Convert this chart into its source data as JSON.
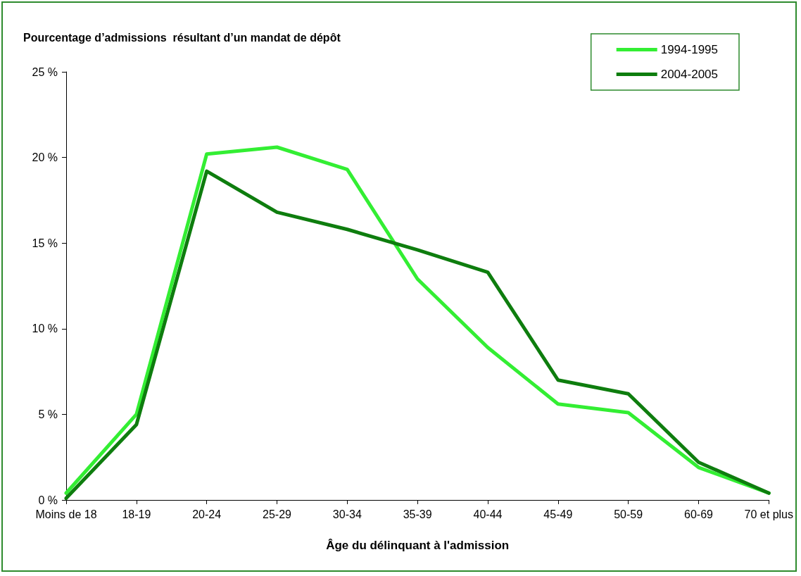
{
  "chart_data": {
    "type": "line",
    "title": "Pourcentage d’admissions  résultant d’un mandat de dépôt",
    "xlabel": "Âge du délinquant à l'admission",
    "categories": [
      "Moins de 18",
      "18-19",
      "20-24",
      "25-29",
      "30-34",
      "35-39",
      "40-44",
      "45-49",
      "50-59",
      "60-69",
      "70 et plus"
    ],
    "series": [
      {
        "name": "1994-1995",
        "color": "#33ee33",
        "values": [
          0.4,
          5.0,
          20.2,
          20.6,
          19.3,
          12.9,
          8.9,
          5.6,
          5.1,
          1.9,
          0.4
        ]
      },
      {
        "name": "2004-2005",
        "color": "#0e7d0e",
        "values": [
          0.1,
          4.4,
          19.2,
          16.8,
          15.8,
          14.6,
          13.3,
          7.0,
          6.2,
          2.2,
          0.4
        ]
      }
    ],
    "ylim": [
      0,
      25
    ],
    "yticks": [
      {
        "value": 0,
        "label": "0 %"
      },
      {
        "value": 5,
        "label": "5 %"
      },
      {
        "value": 10,
        "label": "10 %"
      },
      {
        "value": 15,
        "label": "15 %"
      },
      {
        "value": 20,
        "label": "20 %"
      },
      {
        "value": 25,
        "label": "25 %"
      }
    ],
    "grid": false,
    "legend": "top right",
    "marker": "none",
    "line_style": "solid"
  }
}
